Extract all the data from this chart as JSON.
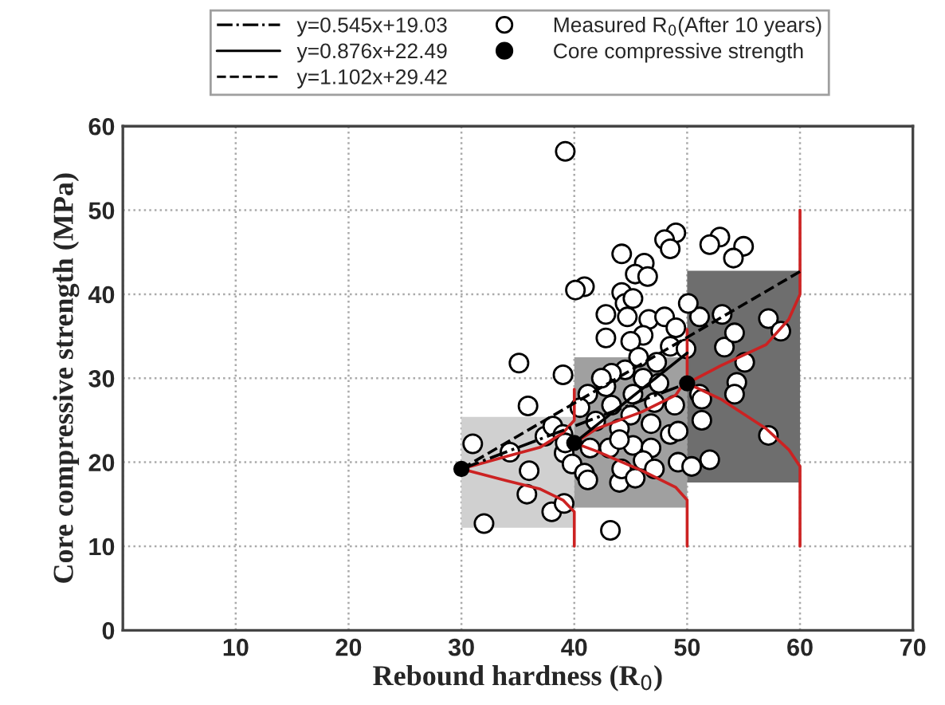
{
  "chart_data": {
    "type": "scatter",
    "xlabel": "Rebound hardness (R$_{0}$)",
    "ylabel": "Core compressive strength (MPa)",
    "xlim": [
      0,
      70
    ],
    "xticks": [
      {
        "value": 0,
        "label": null
      },
      10,
      20,
      30,
      40,
      50,
      60,
      70
    ],
    "ylim": [
      0,
      60
    ],
    "yticks": [
      0,
      10,
      20,
      30,
      40,
      50,
      60
    ],
    "grid": true,
    "legend": "top",
    "series": [
      {
        "type": "bar",
        "x": [
          35,
          45,
          55
        ],
        "base": [
          12.2,
          14.6,
          17.6
        ],
        "values": [
          13.2,
          17.9,
          25.2
        ],
        "colors": [
          "#d0d0d0",
          "#a0a0a0",
          "#6e6e6e"
        ]
      },
      {
        "name": "Measured R$_{0}$(After 10 years)",
        "color": "#ffffff",
        "marker": "circle",
        "x": [
          39.2,
          31.0,
          32.0,
          35.1,
          35.9,
          39.0,
          43.2,
          36.0,
          35.8,
          38.0,
          39.1,
          34.3,
          37.4,
          44.0,
          49.2,
          50.4,
          52.0,
          57.2,
          51.1,
          54.4,
          54.2,
          55.1,
          53.3,
          57.2,
          58.3,
          54.2,
          53.1,
          51.1,
          50.1,
          52.9,
          52.0,
          55.0,
          54.1,
          49.0,
          48.0,
          48.5,
          44.2,
          46.2,
          45.4,
          46.5,
          40.9,
          40.1,
          44.2,
          44.5,
          44.7,
          46.6,
          48.0,
          49.0,
          46.1,
          45.0,
          42.8,
          48.5,
          49.9,
          45.7,
          47.3,
          44.5,
          43.3,
          46.1,
          47.5,
          42.8,
          41.2,
          45.2,
          47.1,
          48.9,
          43.3,
          40.5,
          45.0,
          46.8,
          41.9,
          44.0,
          48.5,
          38.1,
          39.0,
          41.4,
          43.1,
          45.2,
          46.8,
          49.2,
          39.1,
          39.8,
          40.9,
          41.2,
          44.2,
          46.1,
          47.1,
          51.3,
          51.3,
          45.4,
          44.0,
          42.4,
          42.8,
          45.2,
          39.2
        ],
        "values": [
          57.0,
          22.2,
          12.7,
          31.8,
          26.7,
          30.4,
          11.9,
          19.0,
          16.2,
          14.1,
          15.1,
          21.2,
          23.1,
          17.6,
          20.0,
          19.5,
          20.3,
          23.2,
          28.1,
          29.5,
          28.1,
          31.9,
          33.7,
          37.1,
          35.6,
          35.4,
          37.6,
          37.3,
          38.9,
          46.8,
          45.9,
          45.7,
          44.3,
          47.3,
          46.5,
          45.4,
          44.8,
          43.7,
          42.4,
          42.1,
          40.9,
          40.5,
          40.2,
          38.9,
          37.3,
          37.0,
          37.3,
          36.0,
          35.1,
          34.4,
          34.8,
          33.8,
          33.5,
          32.5,
          31.9,
          31.0,
          30.6,
          30.0,
          29.4,
          29.0,
          28.1,
          28.1,
          27.1,
          26.8,
          26.8,
          26.5,
          25.6,
          24.6,
          24.9,
          24.0,
          23.3,
          24.3,
          23.3,
          21.7,
          21.7,
          22.0,
          21.7,
          23.7,
          21.1,
          19.8,
          18.7,
          17.9,
          19.2,
          20.2,
          19.2,
          27.5,
          25.0,
          18.1,
          22.7,
          30.0,
          37.6,
          39.5,
          22.3
        ]
      },
      {
        "type": "line",
        "color": "#cc2222",
        "line_style": "solid",
        "x": [
          40,
          40,
          39,
          37,
          34,
          30,
          34,
          37,
          39,
          40,
          40
        ],
        "values": [
          10,
          14.1,
          15.5,
          16.8,
          17.8,
          19.2,
          20.7,
          21.8,
          23.5,
          25,
          28.7
        ]
      },
      {
        "type": "line",
        "color": "#cc2222",
        "line_style": "solid",
        "x": [
          50,
          50,
          49,
          46,
          42,
          40,
          42,
          46,
          49,
          50,
          50
        ],
        "values": [
          10,
          15.5,
          17,
          19,
          21.3,
          22.3,
          24,
          26,
          28,
          30,
          35.8
        ]
      },
      {
        "type": "line",
        "color": "#cc2222",
        "line_style": "solid",
        "x": [
          60,
          60,
          59,
          57,
          53,
          50,
          53,
          57,
          59,
          60,
          60
        ],
        "values": [
          10,
          19.5,
          21.5,
          24,
          27.5,
          29.4,
          31.5,
          34,
          37,
          40,
          50
        ]
      },
      {
        "type": "line",
        "name": "y=0.545x+19.03",
        "color": "#000000",
        "line_style": "dashdot",
        "x": [
          30,
          50
        ],
        "values": [
          19.2,
          29.4
        ]
      },
      {
        "type": "line",
        "name": "y=0.876x+22.49",
        "color": "#000000",
        "line_style": "solid",
        "x": [
          40,
          50
        ],
        "values": [
          22.3,
          33.0
        ]
      },
      {
        "type": "line",
        "name": "y=1.102x+29.42",
        "color": "#000000",
        "line_style": "dashed",
        "x": [
          30,
          60
        ],
        "values": [
          19.2,
          42.7
        ]
      },
      {
        "name": "Core compressive strength",
        "color": "#000000",
        "marker": "circle",
        "x": [
          30,
          40,
          50
        ],
        "values": [
          19.2,
          22.3,
          29.4
        ]
      }
    ]
  }
}
